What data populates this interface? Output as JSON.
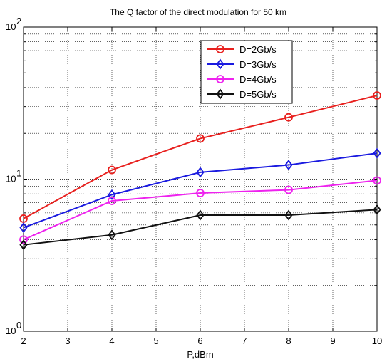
{
  "chart_data": {
    "type": "line",
    "title": "The Q factor of the direct modulation for 50 km",
    "xlabel": "P,dBm",
    "ylabel": "",
    "xlim": [
      2,
      10
    ],
    "ylim": [
      1,
      100
    ],
    "yscale": "log",
    "grid": true,
    "legend_position": "top-right",
    "x_ticks": [
      2,
      3,
      4,
      5,
      6,
      7,
      8,
      9,
      10
    ],
    "y_tick_labels": [
      {
        "value": 1,
        "base": "10",
        "exp": "0"
      },
      {
        "value": 10,
        "base": "10",
        "exp": "1"
      },
      {
        "value": 100,
        "base": "10",
        "exp": "2"
      }
    ],
    "x": [
      2,
      4,
      6,
      8,
      10
    ],
    "series": [
      {
        "name": "D=2Gb/s",
        "color": "#e8201e",
        "marker": "circle",
        "values": [
          5.5,
          11.5,
          18.5,
          25.5,
          35.5
        ]
      },
      {
        "name": "D=3Gb/s",
        "color": "#1a1ae0",
        "marker": "diamond",
        "values": [
          4.8,
          7.9,
          11.1,
          12.4,
          14.8
        ]
      },
      {
        "name": "D=4Gb/s",
        "color": "#ee22ee",
        "marker": "circle",
        "values": [
          4.0,
          7.2,
          8.1,
          8.5,
          9.8
        ]
      },
      {
        "name": "D=5Gb/s",
        "color": "#111111",
        "marker": "diamond",
        "values": [
          3.7,
          4.3,
          5.8,
          5.8,
          6.3
        ]
      }
    ]
  }
}
